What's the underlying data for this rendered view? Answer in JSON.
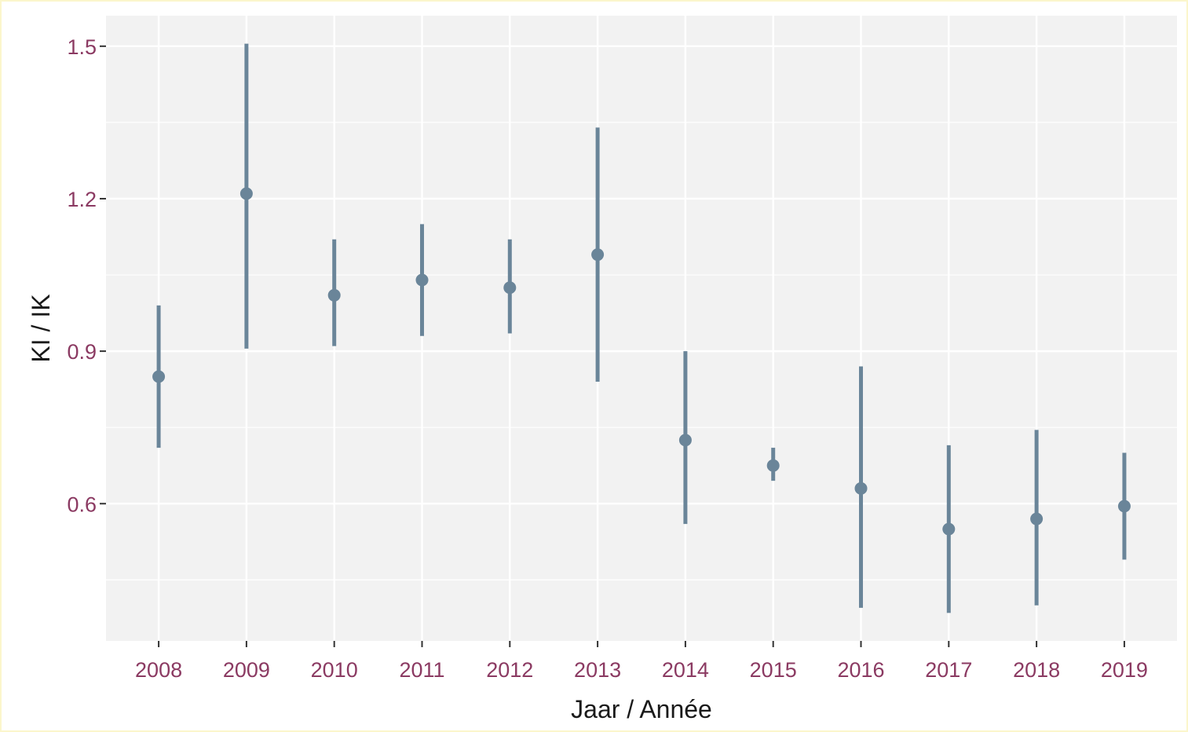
{
  "chart_data": {
    "type": "scatter",
    "title": "",
    "xlabel": "Jaar / Année",
    "ylabel": "KI / IK",
    "categories": [
      "2008",
      "2009",
      "2010",
      "2011",
      "2012",
      "2013",
      "2014",
      "2015",
      "2016",
      "2017",
      "2018",
      "2019"
    ],
    "y_ticks": [
      "0.6",
      "0.9",
      "1.2",
      "1.5"
    ],
    "ylim": [
      0.33,
      1.56
    ],
    "grid": true,
    "legend": "none",
    "series": [
      {
        "values": [
          0.85,
          1.21,
          1.01,
          1.04,
          1.025,
          1.09,
          0.725,
          0.675,
          0.63,
          0.55,
          0.57,
          0.595
        ],
        "lower": [
          0.71,
          0.905,
          0.91,
          0.93,
          0.935,
          0.84,
          0.56,
          0.645,
          0.395,
          0.385,
          0.4,
          0.49
        ],
        "upper": [
          0.99,
          1.505,
          1.12,
          1.15,
          1.12,
          1.34,
          0.9,
          0.71,
          0.87,
          0.715,
          0.745,
          0.7
        ]
      }
    ]
  },
  "colors": {
    "panel": "#f2f2f2",
    "grid": "#ffffff",
    "series": "#6a8599",
    "tick_label": "#8b3a62"
  }
}
